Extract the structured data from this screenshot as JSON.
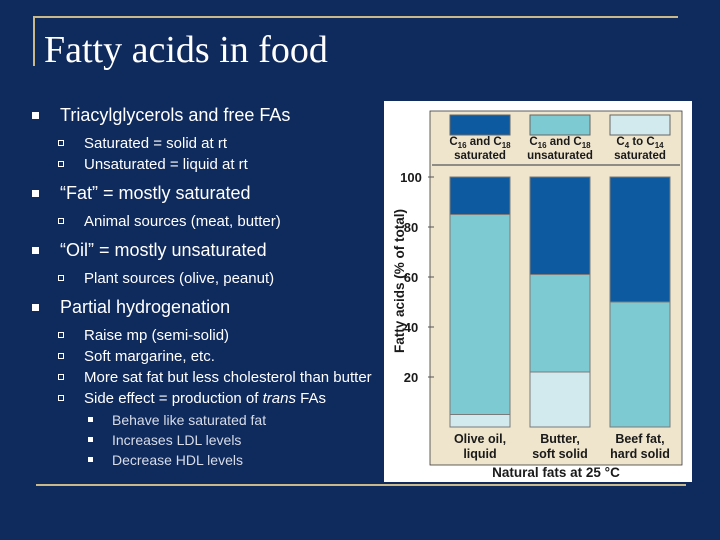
{
  "slide": {
    "title": "Fatty acids in food",
    "bullets": [
      {
        "text": "Triacylglycerols and free FAs",
        "sub": [
          {
            "text": "Saturated = solid at rt"
          },
          {
            "text": "Unsaturated = liquid at rt"
          }
        ]
      },
      {
        "text": "“Fat” = mostly saturated",
        "sub": [
          {
            "text": "Animal sources (meat, butter)"
          }
        ]
      },
      {
        "text": "“Oil” = mostly unsaturated",
        "sub": [
          {
            "text": "Plant sources (olive, peanut)"
          }
        ]
      },
      {
        "text": "Partial hydrogenation",
        "sub": [
          {
            "text": "Raise mp (semi-solid)"
          },
          {
            "text": "Soft margarine, etc."
          },
          {
            "text": "More sat fat but less cholesterol than butter"
          },
          {
            "text_before": "Side effect = production of ",
            "text_italic": "trans",
            "text_after": " FAs",
            "sub": [
              {
                "text": "Behave like saturated fat"
              },
              {
                "text": "Increases LDL levels"
              },
              {
                "text": "Decrease HDL levels"
              }
            ]
          }
        ]
      }
    ]
  },
  "chart_data": {
    "type": "bar",
    "stacked": true,
    "categories": [
      {
        "line1": "Olive oil,",
        "line2": "liquid"
      },
      {
        "line1": "Butter,",
        "line2": "soft solid"
      },
      {
        "line1": "Beef fat,",
        "line2": "hard solid"
      }
    ],
    "series": [
      {
        "name": "C4 to C14 saturated",
        "legend": {
          "main": "C",
          "sub1": "4",
          "mid": " to C",
          "sub2": "14",
          "line2": "saturated"
        },
        "color": "#d2eaee",
        "values": [
          5,
          22,
          0
        ]
      },
      {
        "name": "C16 and C18 unsaturated",
        "legend": {
          "main": "C",
          "sub1": "16",
          "mid": " and C",
          "sub2": "18",
          "line2": "unsaturated"
        },
        "color": "#7ecad3",
        "values": [
          80,
          39,
          50
        ]
      },
      {
        "name": "C16 and C18 saturated",
        "legend": {
          "main": "C",
          "sub1": "16",
          "mid": " and C",
          "sub2": "18",
          "line2": "saturated"
        },
        "color": "#0d5aa0",
        "values": [
          15,
          39,
          50
        ]
      }
    ],
    "legend_order": [
      2,
      1,
      0
    ],
    "ylabel": "Fatty acids (% of total)",
    "xlabel": "Natural fats at 25 °C",
    "yticks": [
      20,
      40,
      60,
      80,
      100
    ],
    "ylim": [
      0,
      100
    ],
    "grid": false,
    "legend_position": "top"
  }
}
